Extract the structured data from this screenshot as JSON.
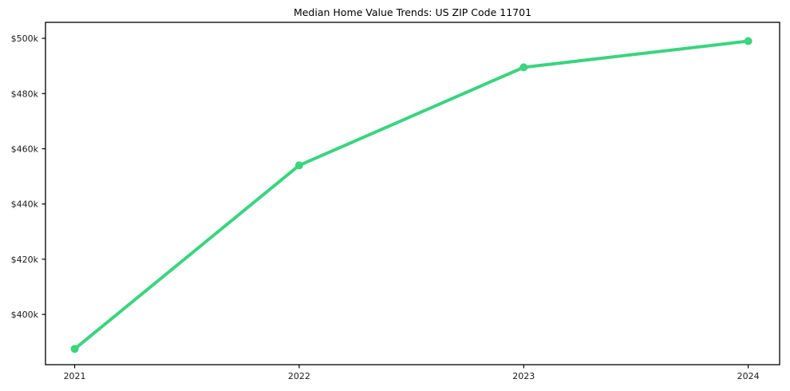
{
  "title": "Median Home Value Trends: US ZIP Code 11701",
  "colors": {
    "line": "#3bd47f",
    "marker": "#3bd47f",
    "axis": "#000000",
    "tick_label": "#1a1a1a",
    "background": "#ffffff"
  },
  "chart_data": {
    "type": "line",
    "title": "Median Home Value Trends: US ZIP Code 11701",
    "xlabel": "",
    "ylabel": "",
    "x": [
      2021,
      2022,
      2023,
      2024
    ],
    "x_tick_labels": [
      "2021",
      "2022",
      "2023",
      "2024"
    ],
    "series": [
      {
        "name": "Median Home Value",
        "values": [
          387500,
          454000,
          489500,
          499000
        ]
      }
    ],
    "y_ticks": [
      400000,
      420000,
      440000,
      460000,
      480000,
      500000
    ],
    "y_tick_labels": [
      "$400k",
      "$420k",
      "$440k",
      "$460k",
      "$480k",
      "$500k"
    ],
    "xlim": [
      2020.87,
      2024.14
    ],
    "ylim": [
      381800,
      505800
    ],
    "grid": false,
    "legend_position": "none",
    "marker": "circle",
    "line_width": 4,
    "marker_radius": 5
  },
  "layout_note": "single line chart, full border box, ticks outside"
}
